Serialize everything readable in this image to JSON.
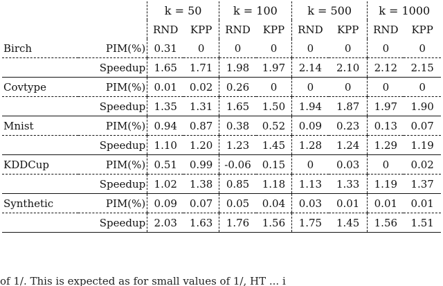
{
  "header": {
    "k_groups": [
      "k = 50",
      "k = 100",
      "k = 500",
      "k = 1000"
    ],
    "sub_cols": [
      "RND",
      "KPP"
    ]
  },
  "rows": [
    {
      "dataset": "Birch",
      "metric": "PIM(%)",
      "values": [
        "0.31",
        "0",
        "0",
        "0",
        "0",
        "0",
        "0",
        "0"
      ]
    },
    {
      "dataset": "",
      "metric": "Speedup",
      "values": [
        "1.65",
        "1.71",
        "1.98",
        "1.97",
        "2.14",
        "2.10",
        "2.12",
        "2.15"
      ]
    },
    {
      "dataset": "Covtype",
      "metric": "PIM(%)",
      "values": [
        "0.01",
        "0.02",
        "0.26",
        "0",
        "0",
        "0",
        "0",
        "0"
      ]
    },
    {
      "dataset": "",
      "metric": "Speedup",
      "values": [
        "1.35",
        "1.31",
        "1.65",
        "1.50",
        "1.94",
        "1.87",
        "1.97",
        "1.90"
      ]
    },
    {
      "dataset": "Mnist",
      "metric": "PIM(%)",
      "values": [
        "0.94",
        "0.87",
        "0.38",
        "0.52",
        "0.09",
        "0.23",
        "0.13",
        "0.07"
      ]
    },
    {
      "dataset": "",
      "metric": "Speedup",
      "values": [
        "1.10",
        "1.20",
        "1.23",
        "1.45",
        "1.28",
        "1.24",
        "1.29",
        "1.19"
      ]
    },
    {
      "dataset": "KDDCup",
      "metric": "PIM(%)",
      "values": [
        "0.51",
        "0.99",
        "-0.06",
        "0.15",
        "0",
        "0.03",
        "0",
        "0.02"
      ]
    },
    {
      "dataset": "",
      "metric": "Speedup",
      "values": [
        "1.02",
        "1.38",
        "0.85",
        "1.18",
        "1.13",
        "1.33",
        "1.19",
        "1.37"
      ]
    },
    {
      "dataset": "Synthetic",
      "metric": "PIM(%)",
      "values": [
        "0.09",
        "0.07",
        "0.05",
        "0.04",
        "0.03",
        "0.01",
        "0.01",
        "0.01"
      ]
    },
    {
      "dataset": "",
      "metric": "Speedup",
      "values": [
        "2.03",
        "1.63",
        "1.76",
        "1.56",
        "1.75",
        "1.45",
        "1.56",
        "1.51"
      ]
    }
  ],
  "caption_fragment": "of 1/. This is expected as for small values of 1/, HT ...   i"
}
